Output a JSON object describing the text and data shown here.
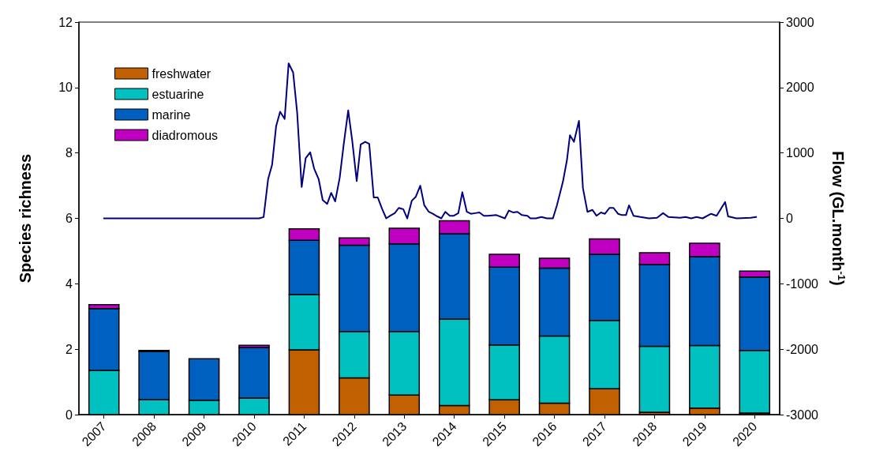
{
  "chart_data": {
    "type": "bar",
    "stacked": true,
    "ylabel": "Species richness",
    "y2label": "Flow (GL.month$^{-1}$)",
    "x": [
      2007,
      2008,
      2009,
      2010,
      2011,
      2012,
      2013,
      2014,
      2015,
      2016,
      2017,
      2018,
      2019,
      2020
    ],
    "xlim": [
      2006.5,
      2020.5
    ],
    "xticks": [
      2007,
      2008,
      2009,
      2010,
      2011,
      2012,
      2013,
      2014,
      2015,
      2016,
      2017,
      2018,
      2019,
      2020
    ],
    "ylim": [
      0,
      12
    ],
    "yticks": [
      0,
      2,
      4,
      6,
      8,
      10,
      12
    ],
    "y2lim": [
      -3000,
      3000
    ],
    "y2ticks": [
      -3000,
      -2000,
      -1000,
      0,
      1000,
      2000,
      3000
    ],
    "grid": false,
    "legend": "top left",
    "series": [
      {
        "name": "freshwater",
        "color": "#c06000",
        "values": [
          0,
          0,
          0,
          0,
          1.98,
          1.12,
          0.6,
          0.28,
          0.45,
          0.35,
          0.79,
          0.07,
          0.2,
          0.05
        ]
      },
      {
        "name": "estuarine",
        "color": "#00c0c0",
        "values": [
          1.35,
          0.46,
          0.44,
          0.51,
          1.69,
          1.42,
          1.94,
          2.64,
          1.68,
          2.05,
          2.09,
          2.02,
          1.91,
          1.91
        ]
      },
      {
        "name": "marine",
        "color": "#0060c0",
        "values": [
          1.89,
          1.47,
          1.27,
          1.54,
          1.66,
          2.64,
          2.68,
          2.61,
          2.38,
          2.08,
          2.02,
          2.5,
          2.72,
          2.25
        ]
      },
      {
        "name": "diadromous",
        "color": "#c000c0",
        "values": [
          0.12,
          0.03,
          0,
          0.07,
          0.35,
          0.22,
          0.48,
          0.4,
          0.39,
          0.3,
          0.47,
          0.36,
          0.41,
          0.18
        ]
      },
      {
        "type": "line",
        "axis": "y2",
        "color": "#000080",
        "marker": "none",
        "line_style": "solid",
        "x": [
          2007,
          2010.1,
          2010.19,
          2010.28,
          2010.36,
          2010.44,
          2010.52,
          2010.61,
          2010.69,
          2010.78,
          2010.86,
          2010.95,
          2011.03,
          2011.12,
          2011.2,
          2011.29,
          2011.37,
          2011.46,
          2011.54,
          2011.62,
          2011.71,
          2011.79,
          2011.88,
          2011.96,
          2012.05,
          2012.13,
          2012.22,
          2012.3,
          2012.39,
          2012.47,
          2012.56,
          2012.64,
          2012.72,
          2012.81,
          2012.89,
          2012.98,
          2013.06,
          2013.15,
          2013.23,
          2013.32,
          2013.4,
          2013.49,
          2013.57,
          2013.66,
          2013.74,
          2013.82,
          2013.91,
          2013.99,
          2014.08,
          2014.16,
          2014.25,
          2014.33,
          2014.42,
          2014.5,
          2014.59,
          2014.67,
          2014.84,
          2015.01,
          2015.09,
          2015.18,
          2015.26,
          2015.35,
          2015.46,
          2015.52,
          2015.63,
          2015.74,
          2015.85,
          2015.97,
          2016.05,
          2016.17,
          2016.25,
          2016.31,
          2016.39,
          2016.49,
          2016.57,
          2016.66,
          2016.76,
          2016.84,
          2016.93,
          2017.01,
          2017.1,
          2017.18,
          2017.27,
          2017.35,
          2017.43,
          2017.49,
          2017.58,
          2017.72,
          2017.89,
          2018.05,
          2018.17,
          2018.28,
          2018.51,
          2018.62,
          2018.73,
          2018.84,
          2018.96,
          2019.13,
          2019.24,
          2019.41,
          2019.47,
          2019.64,
          2019.92,
          2020.03
        ],
        "values": [
          0,
          0,
          20,
          600,
          820,
          1410,
          1630,
          1520,
          2370,
          2230,
          1620,
          480,
          920,
          1010,
          760,
          600,
          280,
          220,
          390,
          260,
          620,
          1130,
          1650,
          1190,
          570,
          1130,
          1170,
          1140,
          320,
          320,
          140,
          0,
          40,
          80,
          160,
          140,
          0,
          270,
          330,
          500,
          200,
          100,
          70,
          30,
          0,
          100,
          40,
          40,
          80,
          400,
          100,
          70,
          80,
          90,
          40,
          40,
          50,
          0,
          120,
          90,
          100,
          50,
          40,
          0,
          0,
          20,
          0,
          0,
          200,
          560,
          890,
          1270,
          1170,
          1490,
          460,
          100,
          130,
          40,
          90,
          70,
          160,
          160,
          70,
          50,
          50,
          200,
          40,
          20,
          0,
          10,
          80,
          20,
          10,
          20,
          0,
          20,
          0,
          70,
          40,
          250,
          30,
          0,
          10,
          20
        ]
      }
    ]
  }
}
